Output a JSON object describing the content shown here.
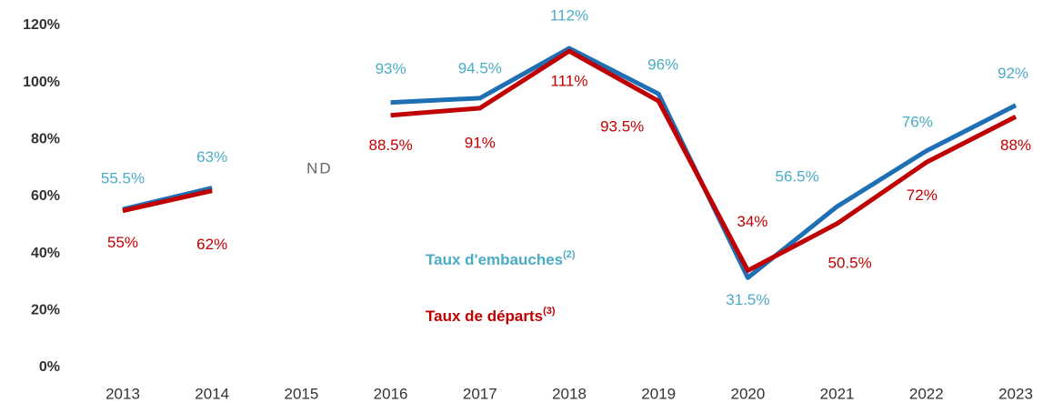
{
  "chart_data": {
    "type": "line",
    "categories": [
      "2013",
      "2014",
      "2015",
      "2016",
      "2017",
      "2018",
      "2019",
      "2020",
      "2021",
      "2022",
      "2023"
    ],
    "series": [
      {
        "name": "Taux d'embauches",
        "note_ref": "(2)",
        "color": "#1f6fb5",
        "label_color": "#4bacc6",
        "values": [
          55.5,
          63,
          null,
          93,
          94.5,
          112,
          96,
          31.5,
          56.5,
          76,
          92
        ],
        "value_labels": [
          "55.5%",
          "63%",
          null,
          "93%",
          "94.5%",
          "112%",
          "96%",
          "31.5%",
          "56.5%",
          "76%",
          "92%"
        ]
      },
      {
        "name": "Taux de départs",
        "note_ref": "(3)",
        "color": "#c00000",
        "label_color": "#c00000",
        "values": [
          55,
          62,
          null,
          88.5,
          91,
          111,
          93.5,
          34,
          50.5,
          72,
          88
        ],
        "value_labels": [
          "55%",
          "62%",
          null,
          "88.5%",
          "91%",
          "111%",
          "93.5%",
          "34%",
          "50.5%",
          "72%",
          "88%"
        ]
      }
    ],
    "annotations": [
      {
        "text": "ND",
        "category": "2015"
      }
    ],
    "ylim": [
      0,
      120
    ],
    "yticks": [
      {
        "value": 0,
        "label": "0%"
      },
      {
        "value": 20,
        "label": "20%"
      },
      {
        "value": 40,
        "label": "40%"
      },
      {
        "value": 60,
        "label": "60%"
      },
      {
        "value": 80,
        "label": "80%"
      },
      {
        "value": 100,
        "label": "100%"
      },
      {
        "value": 120,
        "label": "120%"
      }
    ],
    "grid": false
  }
}
